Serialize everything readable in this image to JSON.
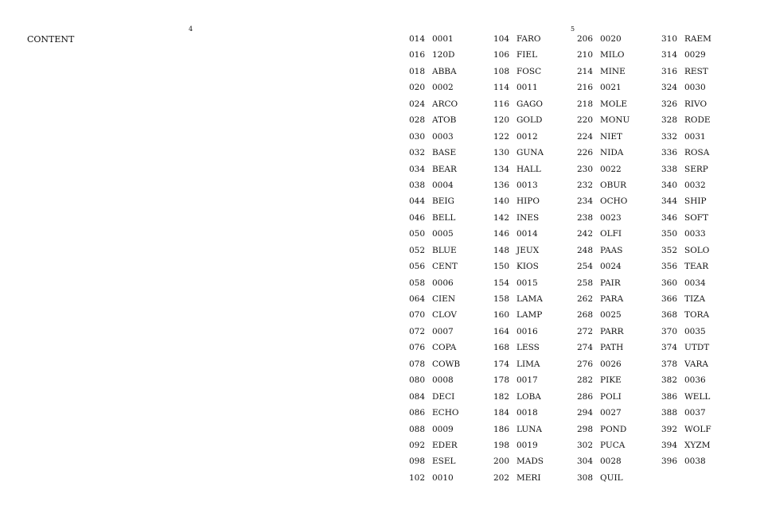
{
  "left_page": {
    "page_number": "4",
    "heading": "CONTENT"
  },
  "right_page": {
    "page_number": "5",
    "columns": [
      [
        [
          "014",
          "0001"
        ],
        [
          "016",
          "120D"
        ],
        [
          "018",
          "ABBA"
        ],
        [
          "020",
          "0002"
        ],
        [
          "024",
          "ARCO"
        ],
        [
          "028",
          "ATOB"
        ],
        [
          "030",
          "0003"
        ],
        [
          "032",
          "BASE"
        ],
        [
          "034",
          "BEAR"
        ],
        [
          "038",
          "0004"
        ],
        [
          "044",
          "BEIG"
        ],
        [
          "046",
          "BELL"
        ],
        [
          "050",
          "0005"
        ],
        [
          "052",
          "BLUE"
        ],
        [
          "056",
          "CENT"
        ],
        [
          "058",
          "0006"
        ],
        [
          "064",
          "CIEN"
        ],
        [
          "070",
          "CLOV"
        ],
        [
          "072",
          "0007"
        ],
        [
          "076",
          "COPA"
        ],
        [
          "078",
          "COWB"
        ],
        [
          "080",
          "0008"
        ],
        [
          "084",
          "DECI"
        ],
        [
          "086",
          "ECHO"
        ],
        [
          "088",
          "0009"
        ],
        [
          "092",
          "EDER"
        ],
        [
          "098",
          "ESEL"
        ],
        [
          "102",
          "0010"
        ]
      ],
      [
        [
          "104",
          "FARO"
        ],
        [
          "106",
          "FIEL"
        ],
        [
          "108",
          "FOSC"
        ],
        [
          "114",
          "0011"
        ],
        [
          "116",
          "GAGO"
        ],
        [
          "120",
          "GOLD"
        ],
        [
          "122",
          "0012"
        ],
        [
          "130",
          "GUNA"
        ],
        [
          "134",
          "HALL"
        ],
        [
          "136",
          "0013"
        ],
        [
          "140",
          "HIPO"
        ],
        [
          "142",
          "INES"
        ],
        [
          "146",
          "0014"
        ],
        [
          "148",
          "JEUX"
        ],
        [
          "150",
          "KIOS"
        ],
        [
          "154",
          "0015"
        ],
        [
          "158",
          "LAMA"
        ],
        [
          "160",
          "LAMP"
        ],
        [
          "164",
          "0016"
        ],
        [
          "168",
          "LESS"
        ],
        [
          "174",
          "LIMA"
        ],
        [
          "178",
          "0017"
        ],
        [
          "182",
          "LOBA"
        ],
        [
          "184",
          "0018"
        ],
        [
          "186",
          "LUNA"
        ],
        [
          "198",
          "0019"
        ],
        [
          "200",
          "MADS"
        ],
        [
          "202",
          "MERI"
        ]
      ],
      [
        [
          "206",
          "0020"
        ],
        [
          "210",
          "MILO"
        ],
        [
          "214",
          "MINE"
        ],
        [
          "216",
          "0021"
        ],
        [
          "218",
          "MOLE"
        ],
        [
          "220",
          "MONU"
        ],
        [
          "224",
          "NIET"
        ],
        [
          "226",
          "NIDA"
        ],
        [
          "230",
          "0022"
        ],
        [
          "232",
          "OBUR"
        ],
        [
          "234",
          "OCHO"
        ],
        [
          "238",
          "0023"
        ],
        [
          "242",
          "OLFI"
        ],
        [
          "248",
          "PAAS"
        ],
        [
          "254",
          "0024"
        ],
        [
          "258",
          "PAIR"
        ],
        [
          "262",
          "PARA"
        ],
        [
          "268",
          "0025"
        ],
        [
          "272",
          "PARR"
        ],
        [
          "274",
          "PATH"
        ],
        [
          "276",
          "0026"
        ],
        [
          "282",
          "PIKE"
        ],
        [
          "286",
          "POLI"
        ],
        [
          "294",
          "0027"
        ],
        [
          "298",
          "POND"
        ],
        [
          "302",
          "PUCA"
        ],
        [
          "304",
          "0028"
        ],
        [
          "308",
          "QUIL"
        ]
      ],
      [
        [
          "310",
          "RAEM"
        ],
        [
          "314",
          "0029"
        ],
        [
          "316",
          "REST"
        ],
        [
          "324",
          "0030"
        ],
        [
          "326",
          "RIVO"
        ],
        [
          "328",
          "RODE"
        ],
        [
          "332",
          "0031"
        ],
        [
          "336",
          "ROSA"
        ],
        [
          "338",
          "SERP"
        ],
        [
          "340",
          "0032"
        ],
        [
          "344",
          "SHIP"
        ],
        [
          "346",
          "SOFT"
        ],
        [
          "350",
          "0033"
        ],
        [
          "352",
          "SOLO"
        ],
        [
          "356",
          "TEAR"
        ],
        [
          "360",
          "0034"
        ],
        [
          "366",
          "TIZA"
        ],
        [
          "368",
          "TORA"
        ],
        [
          "370",
          "0035"
        ],
        [
          "374",
          "UTDT"
        ],
        [
          "378",
          "VARA"
        ],
        [
          "382",
          "0036"
        ],
        [
          "386",
          "WELL"
        ],
        [
          "388",
          "0037"
        ],
        [
          "392",
          "WOLF"
        ],
        [
          "394",
          "XYZM"
        ],
        [
          "396",
          "0038"
        ]
      ]
    ]
  }
}
